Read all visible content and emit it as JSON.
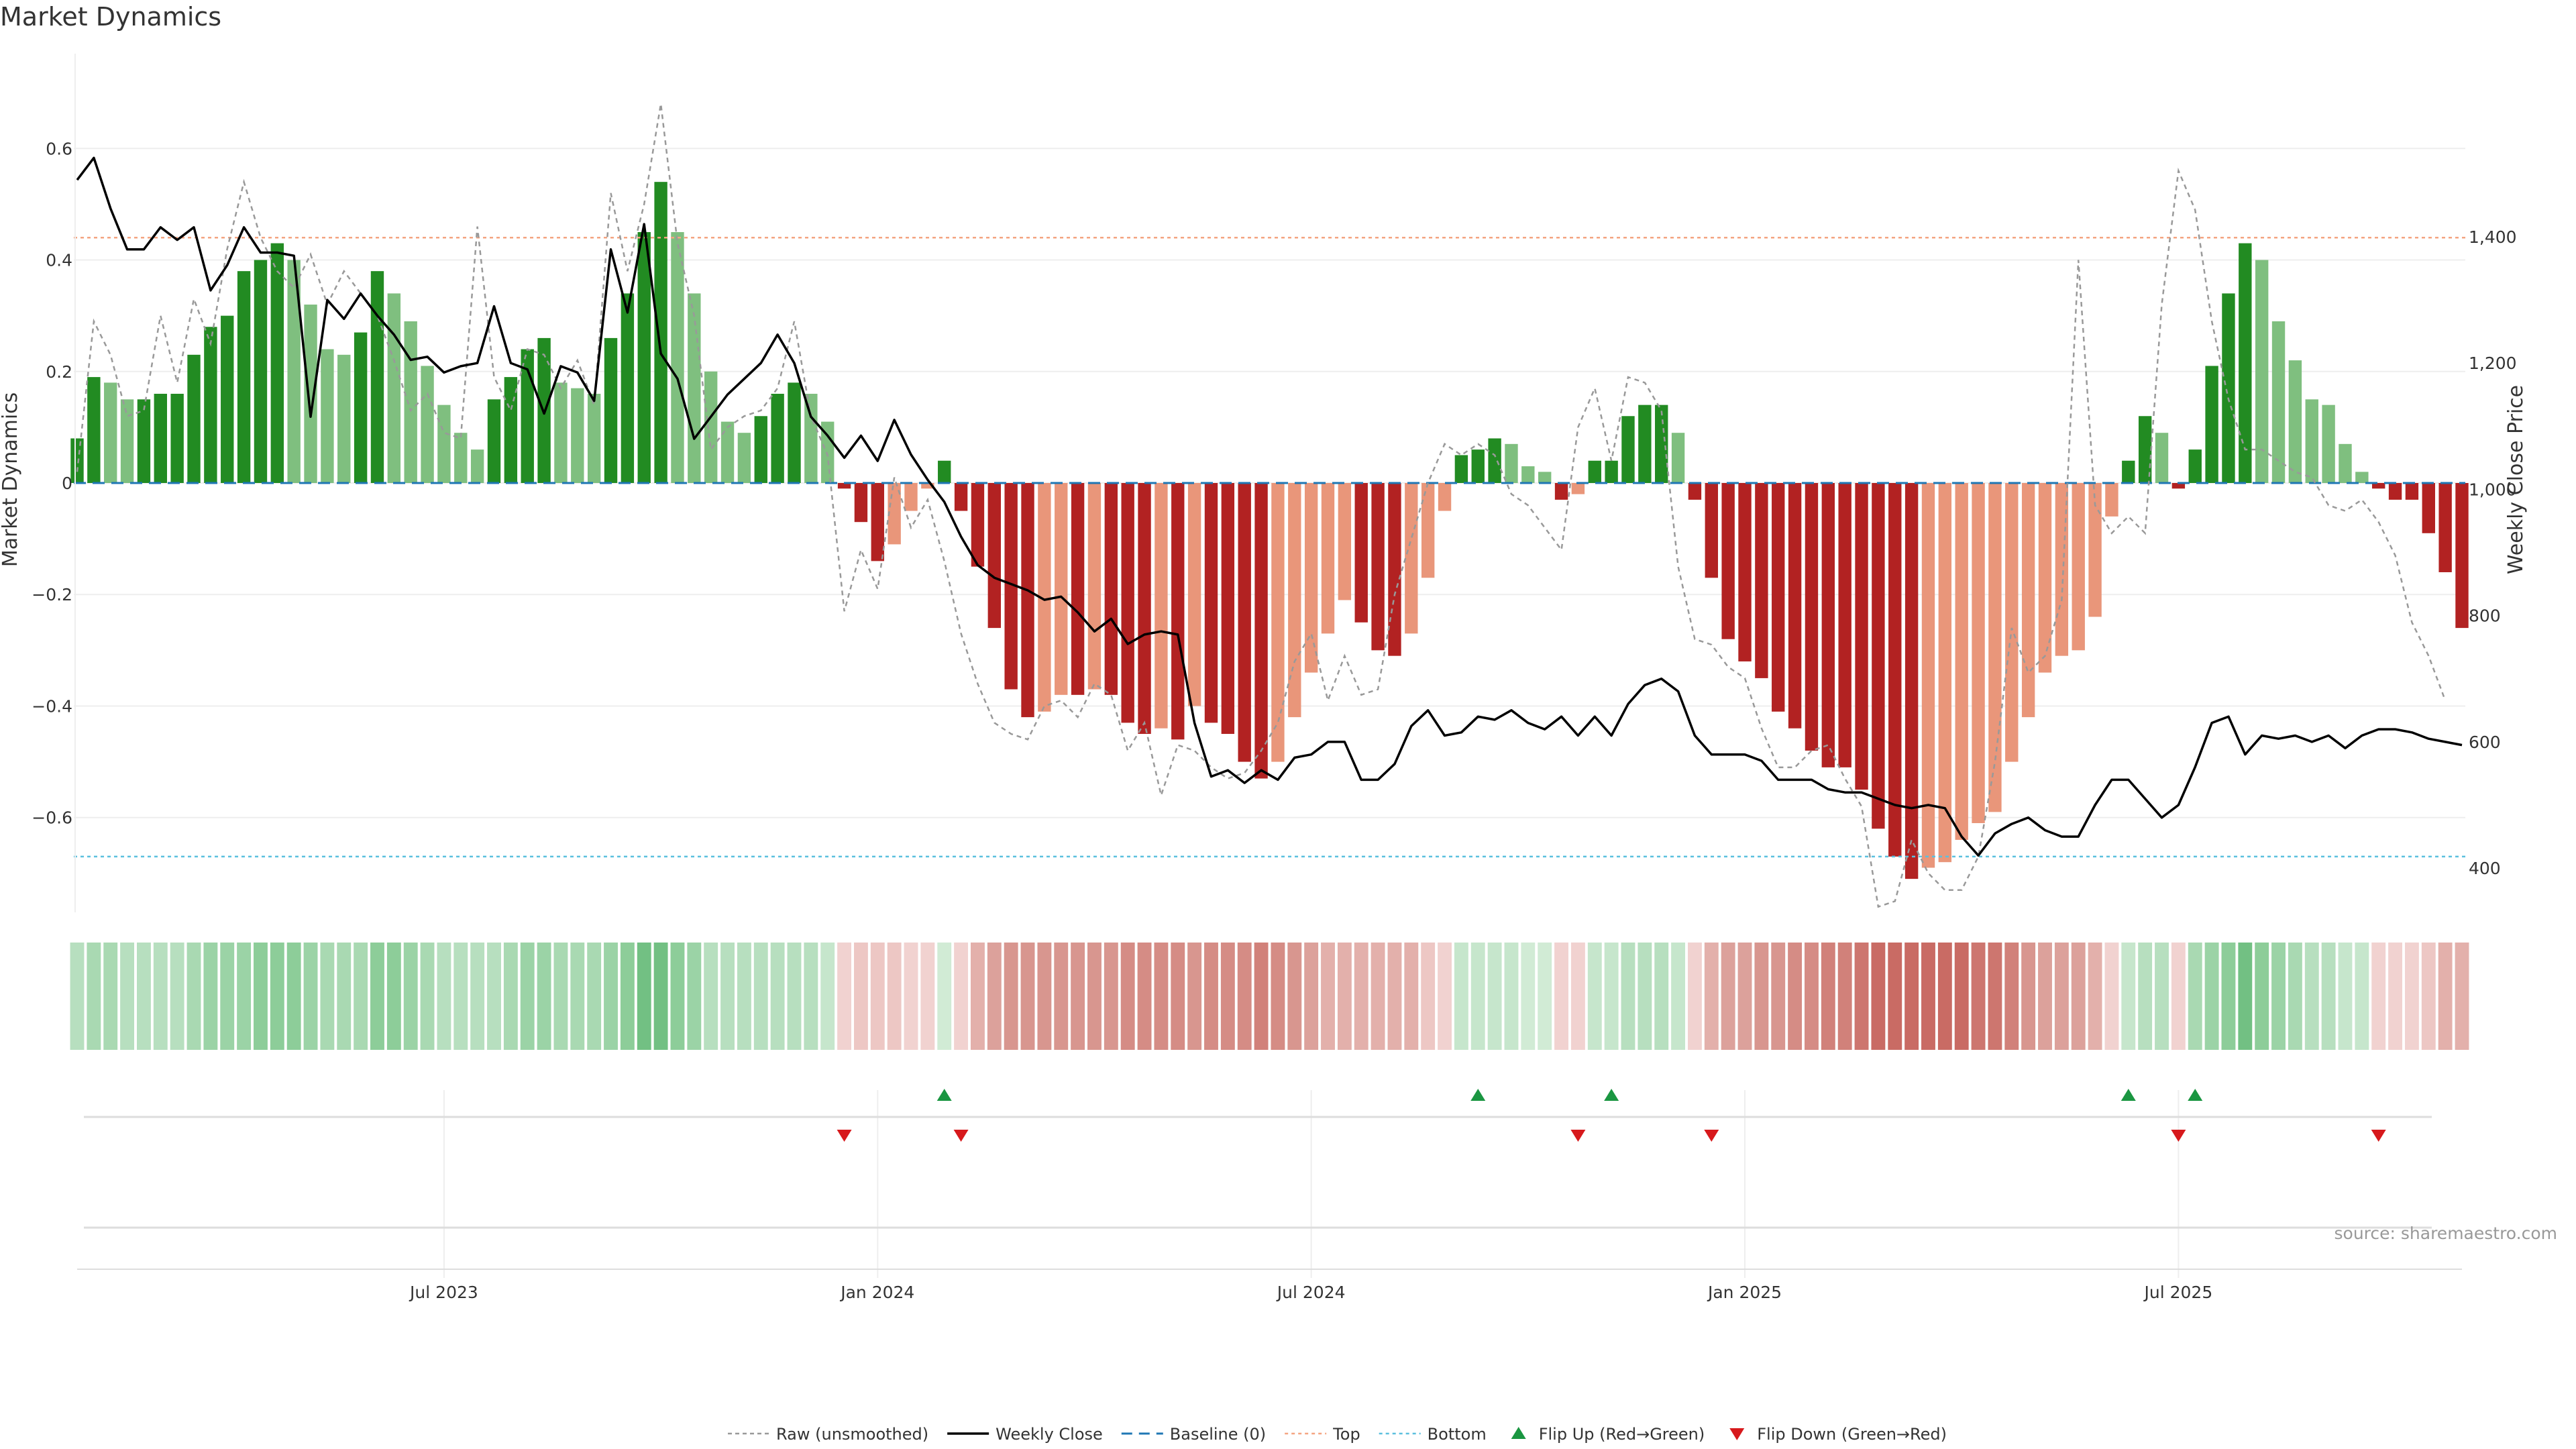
{
  "chart_data": {
    "type": "bar",
    "title": "Market Dynamics",
    "ylabel": "Market Dynamics",
    "y2label": "Weekly Close Price",
    "ylim": [
      -0.77,
      0.77
    ],
    "y2lim": [
      330,
      1690
    ],
    "yticks": [
      -0.6,
      -0.4,
      -0.2,
      0,
      0.2,
      0.4,
      0.6
    ],
    "ytick_labels": [
      "−0.6",
      "−0.4",
      "−0.2",
      "0",
      "0.2",
      "0.4",
      "0.6"
    ],
    "y2ticks": [
      400,
      600,
      800,
      1000,
      1200,
      1400
    ],
    "y2tick_labels": [
      "400",
      "600",
      "800",
      "1,000",
      "1,200",
      "1,400"
    ],
    "top_line": 0.44,
    "bottom_line": -0.67,
    "xticks": [
      {
        "index": 22,
        "label": "Jul 2023"
      },
      {
        "index": 48,
        "label": "Jan 2024"
      },
      {
        "index": 74,
        "label": "Jul 2024"
      },
      {
        "index": 100,
        "label": "Jan 2025"
      },
      {
        "index": 126,
        "label": "Jul 2025"
      }
    ],
    "bars": [
      0.08,
      0.19,
      0.18,
      0.15,
      0.15,
      0.16,
      0.16,
      0.23,
      0.28,
      0.3,
      0.38,
      0.4,
      0.43,
      0.4,
      0.32,
      0.24,
      0.23,
      0.27,
      0.38,
      0.34,
      0.29,
      0.21,
      0.14,
      0.09,
      0.06,
      0.15,
      0.19,
      0.24,
      0.26,
      0.18,
      0.17,
      0.16,
      0.26,
      0.34,
      0.45,
      0.54,
      0.45,
      0.34,
      0.2,
      0.11,
      0.09,
      0.12,
      0.16,
      0.18,
      0.16,
      0.11,
      -0.01,
      -0.07,
      -0.14,
      -0.11,
      -0.05,
      -0.01,
      0.04,
      -0.05,
      -0.15,
      -0.26,
      -0.37,
      -0.42,
      -0.41,
      -0.38,
      -0.38,
      -0.37,
      -0.38,
      -0.43,
      -0.45,
      -0.44,
      -0.46,
      -0.4,
      -0.43,
      -0.45,
      -0.5,
      -0.53,
      -0.5,
      -0.42,
      -0.34,
      -0.27,
      -0.21,
      -0.25,
      -0.3,
      -0.31,
      -0.27,
      -0.17,
      -0.05,
      0.05,
      0.06,
      0.08,
      0.07,
      0.03,
      0.02,
      -0.03,
      -0.02,
      0.04,
      0.04,
      0.12,
      0.14,
      0.14,
      0.09,
      -0.03,
      -0.17,
      -0.28,
      -0.32,
      -0.35,
      -0.41,
      -0.44,
      -0.48,
      -0.51,
      -0.51,
      -0.55,
      -0.62,
      -0.67,
      -0.71,
      -0.69,
      -0.68,
      -0.64,
      -0.61,
      -0.59,
      -0.5,
      -0.42,
      -0.34,
      -0.31,
      -0.3,
      -0.24,
      -0.06,
      0.04,
      0.12,
      0.09,
      -0.01,
      0.06,
      0.21,
      0.34,
      0.43,
      0.4,
      0.29,
      0.22,
      0.15,
      0.14,
      0.07,
      0.02,
      -0.01,
      -0.03,
      -0.03,
      -0.09,
      -0.16,
      -0.26
    ],
    "raw": [
      0.02,
      0.29,
      0.23,
      0.12,
      0.13,
      0.3,
      0.18,
      0.33,
      0.25,
      0.42,
      0.54,
      0.44,
      0.38,
      0.35,
      0.41,
      0.32,
      0.38,
      0.34,
      0.3,
      0.22,
      0.13,
      0.16,
      0.09,
      0.08,
      0.46,
      0.19,
      0.13,
      0.24,
      0.23,
      0.17,
      0.22,
      0.14,
      0.52,
      0.38,
      0.5,
      0.68,
      0.43,
      0.3,
      0.06,
      0.1,
      0.12,
      0.13,
      0.17,
      0.29,
      0.12,
      0.05,
      -0.23,
      -0.12,
      -0.19,
      0.01,
      -0.08,
      -0.03,
      -0.14,
      -0.27,
      -0.36,
      -0.43,
      -0.45,
      -0.46,
      -0.4,
      -0.39,
      -0.42,
      -0.36,
      -0.38,
      -0.48,
      -0.43,
      -0.56,
      -0.47,
      -0.48,
      -0.51,
      -0.53,
      -0.52,
      -0.48,
      -0.43,
      -0.32,
      -0.27,
      -0.39,
      -0.31,
      -0.38,
      -0.37,
      -0.2,
      -0.1,
      0.0,
      0.07,
      0.05,
      0.07,
      0.05,
      -0.02,
      -0.04,
      -0.08,
      -0.12,
      0.1,
      0.17,
      0.04,
      0.19,
      0.18,
      0.13,
      -0.15,
      -0.28,
      -0.29,
      -0.33,
      -0.35,
      -0.44,
      -0.51,
      -0.51,
      -0.48,
      -0.47,
      -0.53,
      -0.58,
      -0.76,
      -0.75,
      -0.64,
      -0.7,
      -0.73,
      -0.73,
      -0.67,
      -0.5,
      -0.26,
      -0.34,
      -0.31,
      -0.21,
      0.4,
      -0.04,
      -0.09,
      -0.06,
      -0.09,
      0.32,
      0.56,
      0.49,
      0.29,
      0.15,
      0.06,
      0.06,
      0.04,
      0.02,
      0.01,
      -0.04,
      -0.05,
      -0.03,
      -0.07,
      -0.13,
      -0.25,
      -0.31,
      -0.39
    ],
    "close": [
      1490,
      1525,
      1445,
      1380,
      1380,
      1415,
      1395,
      1415,
      1315,
      1355,
      1415,
      1375,
      1375,
      1370,
      1115,
      1300,
      1270,
      1310,
      1275,
      1245,
      1205,
      1210,
      1185,
      1195,
      1200,
      1290,
      1200,
      1190,
      1120,
      1195,
      1185,
      1140,
      1380,
      1280,
      1420,
      1215,
      1175,
      1080,
      1115,
      1150,
      1175,
      1200,
      1245,
      1200,
      1115,
      1085,
      1050,
      1085,
      1045,
      1110,
      1055,
      1015,
      980,
      925,
      880,
      860,
      850,
      840,
      825,
      830,
      805,
      775,
      795,
      755,
      770,
      775,
      770,
      630,
      545,
      555,
      535,
      555,
      540,
      575,
      580,
      600,
      600,
      540,
      540,
      565,
      625,
      650,
      610,
      615,
      640,
      635,
      650,
      630,
      620,
      640,
      610,
      640,
      610,
      660,
      690,
      700,
      680,
      610,
      580,
      580,
      580,
      570,
      540,
      540,
      540,
      525,
      520,
      520,
      510,
      500,
      495,
      500,
      495,
      450,
      420,
      455,
      470,
      480,
      460,
      450,
      450,
      500,
      540,
      540,
      510,
      480,
      500,
      560,
      630,
      640,
      580,
      610,
      605,
      610,
      600,
      610,
      590,
      610,
      620,
      620,
      615,
      605,
      600,
      595
    ],
    "ribbon_colors": [
      "#b7dfbf",
      "#a9d9b2",
      "#a9d9b2",
      "#b7dfbf",
      "#b7dfbf",
      "#b7dfbf",
      "#b7dfbf",
      "#a9d9b2",
      "#9bd3a6",
      "#9bd3a6",
      "#9bd3a6",
      "#8dcd99",
      "#8dcd99",
      "#8dcd99",
      "#9bd3a6",
      "#a9d9b2",
      "#a9d9b2",
      "#a9d9b2",
      "#8dcd99",
      "#8dcd99",
      "#9bd3a6",
      "#a9d9b2",
      "#b7dfbf",
      "#b7dfbf",
      "#b7dfbf",
      "#b7dfbf",
      "#a9d9b2",
      "#9bd3a6",
      "#9bd3a6",
      "#a9d9b2",
      "#a9d9b2",
      "#a9d9b2",
      "#9bd3a6",
      "#8dcd99",
      "#72c083",
      "#72c083",
      "#8dcd99",
      "#9bd3a6",
      "#b7dfbf",
      "#b7dfbf",
      "#b7dfbf",
      "#b7dfbf",
      "#b7dfbf",
      "#b7dfbf",
      "#b7dfbf",
      "#c6e6cc",
      "#f1d2d0",
      "#edc7c4",
      "#edc7c4",
      "#edc7c4",
      "#f1d2d0",
      "#f1d2d0",
      "#d1ebd5",
      "#f1d2d0",
      "#e3b0ab",
      "#dca19b",
      "#d8968f",
      "#d8968f",
      "#d8968f",
      "#d8968f",
      "#d8968f",
      "#d8968f",
      "#d8968f",
      "#d58c85",
      "#d58c85",
      "#d58c85",
      "#d58c85",
      "#d8968f",
      "#d58c85",
      "#d58c85",
      "#d58c85",
      "#d1817a",
      "#d58c85",
      "#d8968f",
      "#dca19b",
      "#e3b0ab",
      "#e3b0ab",
      "#e3b0ab",
      "#e3b0ab",
      "#e3b0ab",
      "#e3b0ab",
      "#edc7c4",
      "#f1d2d0",
      "#c6e6cc",
      "#c6e6cc",
      "#c6e6cc",
      "#c6e6cc",
      "#d1ebd5",
      "#d1ebd5",
      "#f1d2d0",
      "#f1d2d0",
      "#c6e6cc",
      "#c6e6cc",
      "#b7dfbf",
      "#b7dfbf",
      "#b7dfbf",
      "#c6e6cc",
      "#f1d2d0",
      "#e3b0ab",
      "#dca19b",
      "#dca19b",
      "#d8968f",
      "#d8968f",
      "#d58c85",
      "#d58c85",
      "#d1817a",
      "#d1817a",
      "#cd766f",
      "#c96b64",
      "#c96b64",
      "#c96b64",
      "#c96b64",
      "#c96b64",
      "#c96b64",
      "#cd766f",
      "#cd766f",
      "#d1817a",
      "#d8968f",
      "#dca19b",
      "#dca19b",
      "#dca19b",
      "#e3b0ab",
      "#f1d2d0",
      "#c6e6cc",
      "#b7dfbf",
      "#b7dfbf",
      "#f1d2d0",
      "#a9d9b2",
      "#9bd3a6",
      "#8dcd99",
      "#72c083",
      "#8dcd99",
      "#9bd3a6",
      "#a9d9b2",
      "#b7dfbf",
      "#b7dfbf",
      "#c6e6cc",
      "#c6e6cc",
      "#f1d2d0",
      "#f1d2d0",
      "#f1d2d0",
      "#edc7c4",
      "#e3b0ab",
      "#e3b0ab"
    ],
    "flips_up": [
      52,
      84,
      92,
      123,
      127
    ],
    "flips_down": [
      46,
      53,
      90,
      98,
      126,
      138
    ],
    "colors": {
      "green_strong": "#228b22",
      "green_weak": "#7fbf7f",
      "red_strong": "#b22222",
      "red_weak": "#e9967a",
      "close_line": "#000000",
      "raw_line": "#999999",
      "baseline": "#1f77b4",
      "top": "#f4a582",
      "bottom": "#5bc0de",
      "flip_up": "#1a9641",
      "flip_down": "#d7191c"
    },
    "legend": [
      {
        "key": "raw",
        "label": "Raw (unsmoothed)"
      },
      {
        "key": "close",
        "label": "Weekly Close"
      },
      {
        "key": "baseline",
        "label": "Baseline (0)"
      },
      {
        "key": "top",
        "label": "Top"
      },
      {
        "key": "bottom",
        "label": "Bottom"
      },
      {
        "key": "flip_up",
        "label": "Flip Up (Red→Green)"
      },
      {
        "key": "flip_down",
        "label": "Flip Down (Green→Red)"
      }
    ],
    "source": "source: sharemaestro.com"
  }
}
